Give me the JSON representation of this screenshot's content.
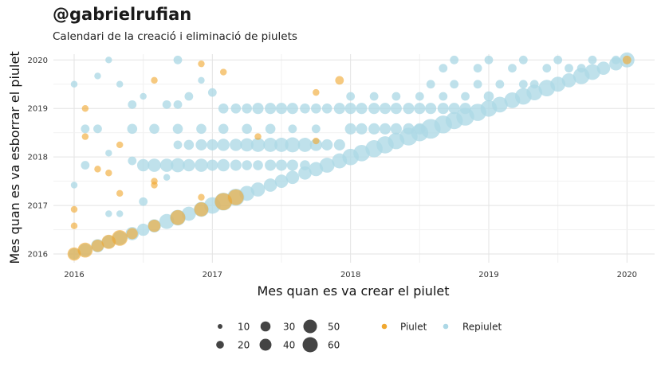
{
  "header": {
    "title": "@gabrielrufian",
    "subtitle": "Calendari de la creació i eliminació de piulets"
  },
  "chart_data": {
    "type": "scatter",
    "xlabel": "Mes quan es va crear el piulet",
    "ylabel": "Mes quan es va esborrar el piulet",
    "xlim": [
      2015.85,
      2020.2
    ],
    "ylim": [
      2015.82,
      2020.12
    ],
    "x_ticks": [
      2016,
      2017,
      2018,
      2019,
      2020
    ],
    "x_tick_labels": [
      "2016",
      "2017",
      "2018",
      "2019",
      "2020"
    ],
    "y_ticks": [
      2016,
      2017,
      2018,
      2019,
      2020
    ],
    "y_tick_labels": [
      "2016",
      "2017",
      "2018",
      "2019",
      "2020"
    ],
    "grid": true,
    "colors": {
      "piulet": "#f0a830",
      "repiulet": "#add8e6",
      "size_legend": "#444444"
    },
    "size_legend": {
      "values": [
        10,
        20,
        30,
        40,
        50,
        60
      ],
      "labels": [
        "10",
        "20",
        "30",
        "40",
        "50",
        "60"
      ]
    },
    "series": [
      {
        "name": "Piulet",
        "color": "#f0a830",
        "points": [
          [
            2016.0,
            2016.0,
            12
          ],
          [
            2016.08,
            2016.08,
            16
          ],
          [
            2016.17,
            2016.17,
            10
          ],
          [
            2016.25,
            2016.25,
            14
          ],
          [
            2016.33,
            2016.33,
            18
          ],
          [
            2016.42,
            2016.42,
            8
          ],
          [
            2016.58,
            2016.58,
            10
          ],
          [
            2016.75,
            2016.75,
            16
          ],
          [
            2016.92,
            2016.92,
            14
          ],
          [
            2017.08,
            2017.08,
            22
          ],
          [
            2017.17,
            2017.17,
            18
          ],
          [
            2016.0,
            2016.92,
            2
          ],
          [
            2016.0,
            2016.58,
            2
          ],
          [
            2016.08,
            2019.0,
            2
          ],
          [
            2016.08,
            2018.42,
            2
          ],
          [
            2016.17,
            2017.75,
            2
          ],
          [
            2016.25,
            2017.67,
            2
          ],
          [
            2016.33,
            2018.25,
            2
          ],
          [
            2016.33,
            2017.25,
            2
          ],
          [
            2016.58,
            2019.58,
            2
          ],
          [
            2016.58,
            2017.42,
            2
          ],
          [
            2016.58,
            2017.5,
            2
          ],
          [
            2016.92,
            2019.92,
            2
          ],
          [
            2016.92,
            2017.17,
            2
          ],
          [
            2017.08,
            2019.75,
            2
          ],
          [
            2017.33,
            2018.42,
            2
          ],
          [
            2017.75,
            2019.33,
            2
          ],
          [
            2017.75,
            2018.33,
            2
          ],
          [
            2017.92,
            2019.58,
            4
          ],
          [
            2020.0,
            2020.0,
            4
          ]
        ]
      },
      {
        "name": "Repiulet",
        "color": "#add8e6",
        "points": [
          [
            2016.0,
            2016.0,
            8
          ],
          [
            2016.08,
            2016.08,
            12
          ],
          [
            2016.17,
            2016.17,
            12
          ],
          [
            2016.25,
            2016.25,
            12
          ],
          [
            2016.33,
            2016.33,
            14
          ],
          [
            2016.42,
            2016.42,
            12
          ],
          [
            2016.5,
            2016.5,
            10
          ],
          [
            2016.58,
            2016.58,
            12
          ],
          [
            2016.67,
            2016.67,
            16
          ],
          [
            2016.75,
            2016.75,
            18
          ],
          [
            2016.83,
            2016.83,
            14
          ],
          [
            2016.92,
            2016.92,
            16
          ],
          [
            2017.0,
            2017.0,
            20
          ],
          [
            2017.08,
            2017.08,
            24
          ],
          [
            2017.17,
            2017.17,
            22
          ],
          [
            2017.25,
            2017.25,
            16
          ],
          [
            2017.33,
            2017.33,
            14
          ],
          [
            2017.42,
            2017.42,
            12
          ],
          [
            2017.5,
            2017.5,
            12
          ],
          [
            2017.58,
            2017.58,
            12
          ],
          [
            2017.67,
            2017.67,
            12
          ],
          [
            2017.75,
            2017.75,
            14
          ],
          [
            2017.83,
            2017.83,
            16
          ],
          [
            2017.92,
            2017.92,
            16
          ],
          [
            2018.0,
            2018.0,
            20
          ],
          [
            2018.08,
            2018.08,
            20
          ],
          [
            2018.17,
            2018.17,
            22
          ],
          [
            2018.25,
            2018.25,
            22
          ],
          [
            2018.33,
            2018.33,
            20
          ],
          [
            2018.42,
            2018.42,
            24
          ],
          [
            2018.5,
            2018.5,
            22
          ],
          [
            2018.58,
            2018.58,
            30
          ],
          [
            2018.67,
            2018.67,
            24
          ],
          [
            2018.75,
            2018.75,
            22
          ],
          [
            2018.83,
            2018.83,
            24
          ],
          [
            2018.92,
            2018.92,
            22
          ],
          [
            2019.0,
            2019.0,
            20
          ],
          [
            2019.08,
            2019.08,
            18
          ],
          [
            2019.17,
            2019.17,
            18
          ],
          [
            2019.25,
            2019.25,
            20
          ],
          [
            2019.33,
            2019.33,
            18
          ],
          [
            2019.42,
            2019.42,
            20
          ],
          [
            2019.5,
            2019.5,
            16
          ],
          [
            2019.58,
            2019.58,
            14
          ],
          [
            2019.67,
            2019.67,
            20
          ],
          [
            2019.75,
            2019.75,
            18
          ],
          [
            2019.83,
            2019.83,
            12
          ],
          [
            2019.92,
            2019.92,
            12
          ],
          [
            2020.0,
            2020.0,
            16
          ],
          [
            2016.5,
            2017.83,
            10
          ],
          [
            2016.58,
            2017.83,
            12
          ],
          [
            2016.67,
            2017.83,
            12
          ],
          [
            2016.75,
            2017.83,
            14
          ],
          [
            2016.83,
            2017.83,
            10
          ],
          [
            2016.92,
            2017.83,
            12
          ],
          [
            2017.0,
            2017.83,
            8
          ],
          [
            2017.08,
            2017.83,
            10
          ],
          [
            2017.17,
            2017.83,
            8
          ],
          [
            2017.25,
            2017.83,
            6
          ],
          [
            2017.33,
            2017.83,
            6
          ],
          [
            2017.42,
            2017.83,
            8
          ],
          [
            2017.5,
            2017.83,
            8
          ],
          [
            2017.58,
            2017.83,
            8
          ],
          [
            2017.67,
            2017.83,
            6
          ],
          [
            2016.92,
            2018.25,
            8
          ],
          [
            2017.0,
            2018.25,
            8
          ],
          [
            2017.08,
            2018.25,
            10
          ],
          [
            2017.17,
            2018.25,
            10
          ],
          [
            2017.25,
            2018.25,
            12
          ],
          [
            2017.33,
            2018.25,
            14
          ],
          [
            2017.42,
            2018.25,
            14
          ],
          [
            2017.5,
            2018.25,
            14
          ],
          [
            2017.58,
            2018.25,
            16
          ],
          [
            2017.67,
            2018.25,
            14
          ],
          [
            2017.75,
            2018.25,
            10
          ],
          [
            2017.83,
            2018.25,
            8
          ],
          [
            2017.92,
            2018.25,
            8
          ],
          [
            2016.83,
            2018.25,
            6
          ],
          [
            2016.75,
            2018.25,
            4
          ],
          [
            2016.42,
            2018.58,
            6
          ],
          [
            2016.58,
            2018.58,
            6
          ],
          [
            2016.75,
            2018.58,
            6
          ],
          [
            2016.92,
            2018.58,
            6
          ],
          [
            2017.08,
            2018.58,
            6
          ],
          [
            2017.25,
            2018.58,
            6
          ],
          [
            2017.42,
            2018.58,
            6
          ],
          [
            2017.58,
            2018.58,
            4
          ],
          [
            2017.75,
            2018.58,
            4
          ],
          [
            2018.0,
            2018.58,
            8
          ],
          [
            2018.08,
            2018.58,
            8
          ],
          [
            2018.17,
            2018.58,
            8
          ],
          [
            2018.25,
            2018.58,
            8
          ],
          [
            2018.33,
            2018.58,
            8
          ],
          [
            2018.42,
            2018.58,
            8
          ],
          [
            2018.5,
            2018.58,
            8
          ],
          [
            2016.0,
            2017.42,
            2
          ],
          [
            2016.0,
            2019.5,
            2
          ],
          [
            2016.08,
            2018.58,
            4
          ],
          [
            2016.08,
            2017.83,
            4
          ],
          [
            2016.17,
            2019.67,
            2
          ],
          [
            2016.17,
            2018.58,
            4
          ],
          [
            2016.25,
            2020.0,
            2
          ],
          [
            2016.25,
            2016.83,
            2
          ],
          [
            2016.25,
            2018.08,
            2
          ],
          [
            2016.33,
            2019.5,
            2
          ],
          [
            2016.33,
            2016.83,
            2
          ],
          [
            2016.42,
            2019.08,
            4
          ],
          [
            2016.42,
            2017.92,
            4
          ],
          [
            2016.5,
            2019.25,
            2
          ],
          [
            2016.5,
            2017.08,
            4
          ],
          [
            2016.67,
            2019.08,
            4
          ],
          [
            2016.67,
            2017.58,
            2
          ],
          [
            2016.75,
            2020.0,
            4
          ],
          [
            2016.75,
            2019.08,
            4
          ],
          [
            2016.83,
            2019.25,
            4
          ],
          [
            2016.92,
            2019.58,
            2
          ],
          [
            2017.0,
            2019.33,
            4
          ],
          [
            2017.08,
            2019.0,
            6
          ],
          [
            2017.17,
            2019.0,
            6
          ],
          [
            2017.25,
            2019.0,
            6
          ],
          [
            2017.33,
            2019.0,
            8
          ],
          [
            2017.42,
            2019.0,
            8
          ],
          [
            2017.5,
            2019.0,
            8
          ],
          [
            2017.58,
            2019.0,
            8
          ],
          [
            2017.67,
            2019.0,
            6
          ],
          [
            2017.75,
            2019.0,
            6
          ],
          [
            2017.83,
            2019.0,
            6
          ],
          [
            2017.92,
            2019.0,
            8
          ],
          [
            2018.0,
            2019.0,
            8
          ],
          [
            2018.08,
            2019.0,
            8
          ],
          [
            2018.17,
            2019.0,
            8
          ],
          [
            2018.25,
            2019.0,
            8
          ],
          [
            2018.33,
            2019.0,
            8
          ],
          [
            2018.42,
            2019.0,
            8
          ],
          [
            2018.5,
            2019.0,
            8
          ],
          [
            2018.58,
            2019.0,
            8
          ],
          [
            2018.67,
            2019.0,
            8
          ],
          [
            2018.75,
            2019.0,
            8
          ],
          [
            2018.83,
            2019.0,
            8
          ],
          [
            2018.0,
            2019.25,
            4
          ],
          [
            2018.17,
            2019.25,
            4
          ],
          [
            2018.33,
            2019.25,
            4
          ],
          [
            2018.5,
            2019.25,
            4
          ],
          [
            2018.67,
            2019.25,
            4
          ],
          [
            2018.83,
            2019.25,
            4
          ],
          [
            2019.0,
            2019.25,
            6
          ],
          [
            2018.58,
            2019.5,
            4
          ],
          [
            2018.75,
            2019.5,
            4
          ],
          [
            2018.92,
            2019.5,
            4
          ],
          [
            2019.08,
            2019.5,
            4
          ],
          [
            2019.25,
            2019.5,
            4
          ],
          [
            2019.33,
            2019.5,
            4
          ],
          [
            2018.67,
            2019.83,
            4
          ],
          [
            2018.92,
            2019.83,
            4
          ],
          [
            2019.17,
            2019.83,
            4
          ],
          [
            2019.42,
            2019.83,
            4
          ],
          [
            2019.58,
            2019.83,
            4
          ],
          [
            2019.67,
            2019.83,
            4
          ],
          [
            2018.75,
            2020.0,
            4
          ],
          [
            2019.0,
            2020.0,
            4
          ],
          [
            2019.25,
            2020.0,
            4
          ],
          [
            2019.5,
            2020.0,
            4
          ],
          [
            2019.75,
            2020.0,
            4
          ],
          [
            2019.92,
            2020.0,
            4
          ]
        ]
      }
    ]
  }
}
